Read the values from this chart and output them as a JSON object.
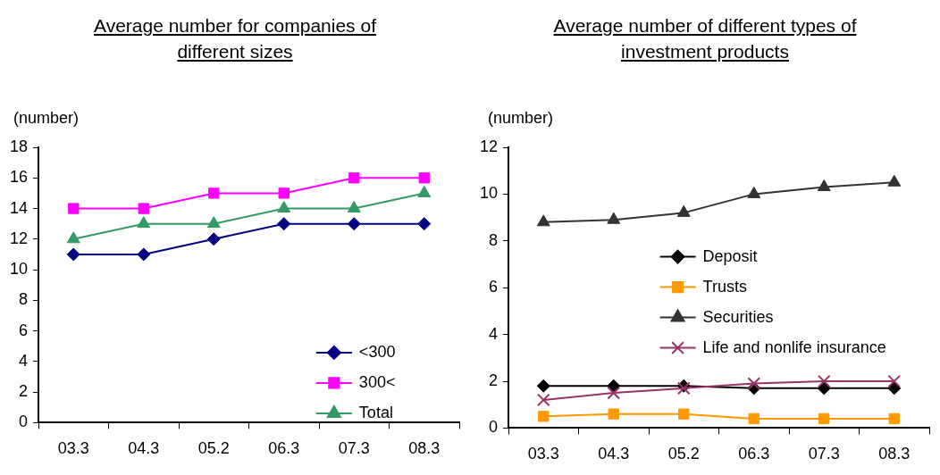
{
  "chart_data": [
    {
      "type": "line",
      "title": "Average number for companies of different sizes",
      "ylabel": "(number)",
      "categories": [
        "03.3",
        "04.3",
        "05.2",
        "06.3",
        "07.3",
        "08.3"
      ],
      "ylim": [
        0,
        18
      ],
      "yticks": [
        0,
        2,
        4,
        6,
        8,
        10,
        12,
        14,
        16,
        18
      ],
      "grid": false,
      "legend": "bottom right",
      "series": [
        {
          "name": "<300",
          "color": "#000080",
          "marker": "diamond",
          "values": [
            11,
            11,
            12,
            13,
            13,
            13
          ]
        },
        {
          "name": "300<",
          "color": "#ff00ff",
          "marker": "square",
          "values": [
            14,
            14,
            15,
            15,
            16,
            16
          ]
        },
        {
          "name": "Total",
          "color": "#339966",
          "marker": "triangle",
          "values": [
            12,
            13,
            13,
            14,
            14,
            15
          ]
        }
      ]
    },
    {
      "type": "line",
      "title": "Average number of different types of investment products",
      "ylabel": "(number)",
      "categories": [
        "03.3",
        "04.3",
        "05.2",
        "06.3",
        "07.3",
        "08.3"
      ],
      "ylim": [
        0,
        12
      ],
      "yticks": [
        0,
        2,
        4,
        6,
        8,
        10,
        12
      ],
      "grid": false,
      "legend": "right",
      "series": [
        {
          "name": "Deposit",
          "color": "#000000",
          "marker": "diamond",
          "values": [
            1.8,
            1.8,
            1.8,
            1.7,
            1.7,
            1.7
          ]
        },
        {
          "name": "Trusts",
          "color": "#ff9900",
          "marker": "square",
          "values": [
            0.5,
            0.6,
            0.6,
            0.4,
            0.4,
            0.4
          ]
        },
        {
          "name": "Securities",
          "color": "#333333",
          "marker": "triangle",
          "values": [
            8.8,
            8.9,
            9.2,
            10.0,
            10.3,
            10.5
          ]
        },
        {
          "name": "Life and nonlife insurance",
          "color": "#993366",
          "marker": "cross",
          "values": [
            1.2,
            1.5,
            1.7,
            1.9,
            2.0,
            2.0
          ]
        }
      ]
    }
  ]
}
